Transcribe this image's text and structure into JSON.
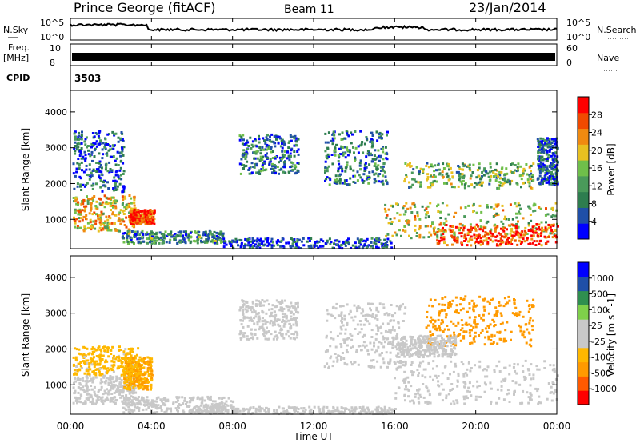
{
  "header": {
    "station": "Prince George (fitACF)",
    "beam": "Beam 11",
    "date": "23/Jan/2014"
  },
  "panels": {
    "nsky_label": "N.Sky",
    "nsearch_label": "N.Search",
    "freq_label_1": "Freq.",
    "freq_label_2": "[MHz]",
    "nave_label": "Nave",
    "cpid_label": "CPID",
    "cpid_value": "3503",
    "nsky_ticks": [
      "10^5",
      "10^0"
    ],
    "nsearch_ticks": [
      "10^5",
      "10^0"
    ],
    "freq_ticks": [
      "10",
      "8"
    ],
    "nave_ticks": [
      "60",
      "0"
    ]
  },
  "colors": {
    "power_scale": [
      "#0000ff",
      "#1f4fa8",
      "#2e7d4f",
      "#4a9a5a",
      "#6fbf4a",
      "#e8c020",
      "#f08a10",
      "#f04a00",
      "#ff0000"
    ],
    "velocity_scale": [
      "#ff0000",
      "#ff5a00",
      "#ff9a00",
      "#ffb800",
      "#c8c8c8",
      "#c8c8c8",
      "#7fd04a",
      "#2f8f4f",
      "#1f4fa8",
      "#0000ff"
    ]
  },
  "chart_data": [
    {
      "type": "heatmap",
      "name_shown": "",
      "x": [
        "00:00",
        "04:00",
        "08:00",
        "12:00",
        "16:00",
        "20:00",
        "00:00"
      ],
      "xlim_hours": [
        0,
        24
      ],
      "ylabel": "Slant Range [km]",
      "yticks": [
        1000,
        2000,
        3000,
        4000
      ],
      "ylim": [
        180,
        4600
      ],
      "colorbar": {
        "label": "Power [dB]",
        "ticks": [
          "4",
          "8",
          "12",
          "16",
          "20",
          "24",
          "28"
        ],
        "range": [
          0,
          32
        ]
      },
      "regions": [
        {
          "t0": 0.1,
          "t1": 3.2,
          "r0": 700,
          "r1": 1700,
          "level": 20
        },
        {
          "t0": 2.9,
          "t1": 4.1,
          "r0": 900,
          "r1": 1300,
          "level": 28
        },
        {
          "t0": 0.1,
          "t1": 2.6,
          "r0": 1800,
          "r1": 3500,
          "level": 6
        },
        {
          "t0": 2.5,
          "t1": 7.5,
          "r0": 350,
          "r1": 700,
          "level": 10
        },
        {
          "t0": 7.5,
          "t1": 15.8,
          "r0": 220,
          "r1": 500,
          "level": 5
        },
        {
          "t0": 8.3,
          "t1": 11.2,
          "r0": 2300,
          "r1": 3400,
          "level": 8
        },
        {
          "t0": 12.5,
          "t1": 15.6,
          "r0": 2000,
          "r1": 3500,
          "level": 8
        },
        {
          "t0": 15.4,
          "t1": 24.0,
          "r0": 500,
          "r1": 1500,
          "level": 18
        },
        {
          "t0": 18.0,
          "t1": 24.0,
          "r0": 300,
          "r1": 900,
          "level": 28
        },
        {
          "t0": 16.4,
          "t1": 22.8,
          "r0": 1900,
          "r1": 2600,
          "level": 14
        },
        {
          "t0": 23.0,
          "t1": 24.0,
          "r0": 2000,
          "r1": 3300,
          "level": 6
        }
      ]
    },
    {
      "type": "heatmap",
      "name_shown": "",
      "x": [
        "00:00",
        "04:00",
        "08:00",
        "12:00",
        "16:00",
        "20:00",
        "00:00"
      ],
      "xlabel": "Time UT",
      "xlim_hours": [
        0,
        24
      ],
      "ylabel": "Slant Range [km]",
      "yticks": [
        1000,
        2000,
        3000,
        4000
      ],
      "ylim": [
        180,
        4600
      ],
      "colorbar": {
        "label": "Velocity [m s^-1]",
        "ticks": [
          "-1000",
          "-500",
          "-100",
          "-25",
          "25",
          "100",
          "500",
          "1000"
        ],
        "range": [
          -1250,
          1250
        ]
      },
      "regions": [
        {
          "t0": 0.1,
          "t1": 3.2,
          "r0": 500,
          "r1": 1300,
          "level": 0
        },
        {
          "t0": 0.1,
          "t1": 3.4,
          "r0": 1300,
          "r1": 2100,
          "level": -300
        },
        {
          "t0": 2.6,
          "t1": 4.0,
          "r0": 900,
          "r1": 1800,
          "level": -500
        },
        {
          "t0": 2.5,
          "t1": 8.0,
          "r0": 250,
          "r1": 700,
          "level": -150
        },
        {
          "t0": 8.3,
          "t1": 11.2,
          "r0": 2300,
          "r1": 3400,
          "level": 0
        },
        {
          "t0": 12.5,
          "t1": 16.5,
          "r0": 1500,
          "r1": 3300,
          "level": 0
        },
        {
          "t0": 15.8,
          "t1": 24.0,
          "r0": 500,
          "r1": 1700,
          "level": 0
        },
        {
          "t0": 17.5,
          "t1": 22.8,
          "r0": 2100,
          "r1": 3500,
          "level": -600
        },
        {
          "t0": 16.0,
          "t1": 19.0,
          "r0": 1800,
          "r1": 2400,
          "level": 150
        },
        {
          "t0": 6.0,
          "t1": 16.0,
          "r0": 220,
          "r1": 420,
          "level": -150
        }
      ]
    }
  ]
}
